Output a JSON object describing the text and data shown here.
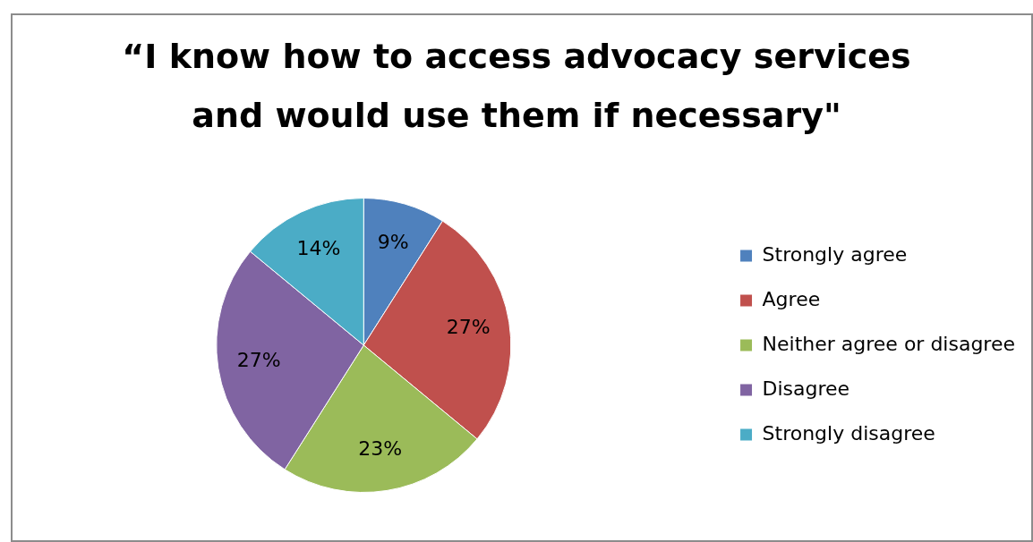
{
  "chart_data": {
    "type": "pie",
    "title": "“I know how to access advocacy services and would use them if necessary\"",
    "categories": [
      "Strongly agree",
      "Agree",
      "Neither agree or disagree",
      "Disagree",
      "Strongly disagree"
    ],
    "values": [
      9,
      27,
      23,
      27,
      14
    ],
    "colors": [
      "#4f81bd",
      "#c0504d",
      "#9bbb59",
      "#8064a2",
      "#4bacc6"
    ],
    "value_labels": [
      "9%",
      "27%",
      "23%",
      "27%",
      "14%"
    ],
    "legend": "right"
  }
}
